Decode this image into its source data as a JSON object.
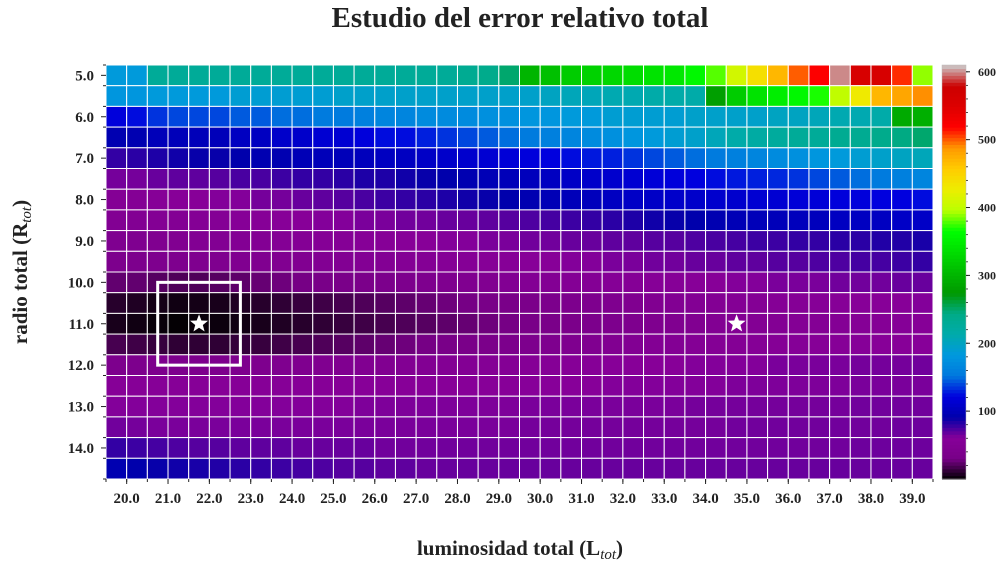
{
  "chart_data": {
    "type": "heatmap",
    "title": "Estudio del error relativo total",
    "xlabel": {
      "main": "luminosidad total (L",
      "sub": "tot",
      "close": ")"
    },
    "ylabel": {
      "main": "radio total (R",
      "sub": "tot",
      "close": ")"
    },
    "x_ticks": [
      "20.0",
      "21.0",
      "22.0",
      "23.0",
      "24.0",
      "25.0",
      "26.0",
      "27.0",
      "28.0",
      "29.0",
      "30.0",
      "31.0",
      "32.0",
      "33.0",
      "34.0",
      "35.0",
      "36.0",
      "37.0",
      "38.0",
      "39.0"
    ],
    "y_ticks": [
      "5.0",
      "6.0",
      "7.0",
      "8.0",
      "9.0",
      "10.0",
      "11.0",
      "12.0",
      "13.0",
      "14.0"
    ],
    "x_range": [
      20.0,
      40.0
    ],
    "y_range": [
      5.0,
      14.5
    ],
    "n_cols": 40,
    "n_rows": 20,
    "colorbar": {
      "colormap": "nipy_spectral",
      "min": 0,
      "max": 610,
      "ticks": [
        "100",
        "200",
        "300",
        "400",
        "500",
        "600"
      ]
    },
    "grid_lines": "white",
    "markers": [
      {
        "type": "star",
        "x": 22.0,
        "y": 11.0
      },
      {
        "type": "star",
        "x": 35.0,
        "y": 11.0
      }
    ],
    "highlight_box": {
      "x_min": 21.0,
      "x_max": 23.0,
      "y_min": 10.0,
      "y_max": 12.0
    },
    "values_note_rows": "row 0 = R 5.0, step 0.5; col 0 = L 20.0, step 0.5",
    "values": [
      [
        185,
        185,
        230,
        230,
        230,
        230,
        230,
        230,
        230,
        230,
        230,
        230,
        230,
        230,
        230,
        230,
        230,
        235,
        240,
        250,
        300,
        310,
        320,
        325,
        330,
        335,
        340,
        345,
        360,
        380,
        410,
        440,
        470,
        500,
        520,
        600,
        560,
        560,
        510,
        390
      ],
      [
        180,
        180,
        185,
        185,
        185,
        185,
        190,
        190,
        190,
        190,
        190,
        195,
        195,
        195,
        195,
        195,
        195,
        195,
        195,
        195,
        195,
        200,
        205,
        205,
        210,
        210,
        215,
        215,
        215,
        280,
        320,
        340,
        350,
        360,
        370,
        400,
        430,
        470,
        480,
        490
      ],
      [
        120,
        125,
        135,
        140,
        140,
        140,
        145,
        145,
        150,
        150,
        155,
        155,
        160,
        165,
        165,
        170,
        170,
        170,
        175,
        175,
        180,
        180,
        185,
        185,
        190,
        190,
        190,
        190,
        195,
        195,
        195,
        195,
        200,
        200,
        205,
        210,
        210,
        215,
        290,
        295
      ],
      [
        95,
        95,
        100,
        100,
        100,
        100,
        105,
        105,
        110,
        110,
        115,
        115,
        120,
        125,
        125,
        130,
        135,
        140,
        145,
        150,
        155,
        160,
        165,
        170,
        175,
        180,
        185,
        190,
        195,
        205,
        215,
        220,
        225,
        230,
        230,
        235,
        235,
        240,
        245,
        250
      ],
      [
        80,
        82,
        85,
        88,
        90,
        90,
        92,
        95,
        95,
        98,
        100,
        100,
        102,
        105,
        105,
        108,
        110,
        112,
        115,
        118,
        120,
        122,
        125,
        128,
        130,
        135,
        140,
        145,
        150,
        155,
        160,
        165,
        170,
        175,
        180,
        185,
        190,
        195,
        200,
        205
      ],
      [
        65,
        65,
        68,
        70,
        70,
        72,
        75,
        75,
        78,
        80,
        80,
        82,
        85,
        85,
        88,
        90,
        92,
        95,
        98,
        100,
        102,
        105,
        108,
        110,
        112,
        115,
        118,
        120,
        122,
        125,
        128,
        130,
        132,
        135,
        140,
        145,
        150,
        155,
        160,
        165
      ],
      [
        55,
        55,
        58,
        60,
        60,
        62,
        62,
        65,
        65,
        68,
        70,
        72,
        75,
        78,
        80,
        82,
        85,
        88,
        90,
        92,
        95,
        98,
        100,
        102,
        105,
        108,
        108,
        110,
        110,
        112,
        112,
        115,
        115,
        118,
        118,
        120,
        120,
        122,
        122,
        125
      ],
      [
        50,
        50,
        52,
        52,
        55,
        55,
        58,
        58,
        60,
        60,
        62,
        62,
        64,
        64,
        66,
        66,
        68,
        68,
        70,
        72,
        74,
        76,
        78,
        80,
        82,
        85,
        88,
        90,
        92,
        95,
        98,
        100,
        100,
        102,
        102,
        105,
        105,
        105,
        108,
        108
      ],
      [
        45,
        45,
        46,
        48,
        50,
        50,
        52,
        52,
        54,
        54,
        56,
        56,
        58,
        58,
        60,
        60,
        62,
        62,
        64,
        64,
        66,
        66,
        68,
        68,
        70,
        70,
        72,
        72,
        74,
        75,
        76,
        78,
        78,
        80,
        80,
        82,
        82,
        84,
        84,
        86
      ],
      [
        40,
        40,
        42,
        42,
        44,
        44,
        46,
        46,
        48,
        48,
        50,
        50,
        52,
        52,
        54,
        54,
        56,
        56,
        58,
        58,
        60,
        60,
        62,
        62,
        64,
        64,
        66,
        66,
        68,
        68,
        70,
        70,
        72,
        72,
        74,
        74,
        76,
        76,
        78,
        80
      ],
      [
        25,
        25,
        22,
        20,
        20,
        22,
        24,
        26,
        28,
        30,
        32,
        34,
        36,
        38,
        40,
        42,
        44,
        46,
        48,
        50,
        52,
        52,
        54,
        54,
        56,
        56,
        58,
        58,
        60,
        60,
        62,
        62,
        64,
        64,
        64,
        66,
        66,
        66,
        68,
        68
      ],
      [
        10,
        8,
        5,
        4,
        5,
        6,
        8,
        10,
        12,
        14,
        16,
        18,
        20,
        22,
        24,
        26,
        28,
        30,
        32,
        34,
        36,
        38,
        40,
        42,
        44,
        46,
        48,
        50,
        52,
        52,
        54,
        54,
        56,
        56,
        58,
        58,
        60,
        60,
        60,
        62
      ],
      [
        6,
        4,
        2,
        1,
        2,
        3,
        4,
        6,
        8,
        10,
        12,
        14,
        16,
        18,
        20,
        22,
        24,
        26,
        28,
        30,
        32,
        34,
        36,
        38,
        40,
        42,
        44,
        46,
        48,
        50,
        50,
        52,
        52,
        54,
        54,
        55,
        56,
        56,
        57,
        58
      ],
      [
        18,
        16,
        14,
        12,
        12,
        12,
        13,
        14,
        16,
        18,
        20,
        22,
        24,
        26,
        28,
        30,
        32,
        34,
        36,
        38,
        40,
        42,
        44,
        46,
        48,
        50,
        52,
        52,
        54,
        54,
        55,
        56,
        56,
        57,
        58,
        58,
        59,
        60,
        60,
        61
      ],
      [
        40,
        40,
        40,
        40,
        40,
        40,
        42,
        42,
        44,
        44,
        46,
        46,
        48,
        48,
        50,
        50,
        52,
        52,
        54,
        54,
        56,
        56,
        58,
        58,
        60,
        60,
        60,
        60,
        62,
        62,
        62,
        62,
        64,
        64,
        64,
        64,
        65,
        65,
        65,
        66
      ],
      [
        58,
        58,
        58,
        58,
        58,
        58,
        58,
        58,
        58,
        58,
        58,
        58,
        60,
        60,
        60,
        60,
        60,
        60,
        60,
        60,
        61,
        61,
        61,
        61,
        62,
        62,
        62,
        62,
        62,
        62,
        63,
        63,
        63,
        63,
        63,
        63,
        64,
        64,
        64,
        64
      ],
      [
        62,
        62,
        62,
        62,
        62,
        62,
        62,
        62,
        62,
        62,
        62,
        62,
        63,
        63,
        63,
        63,
        63,
        63,
        63,
        63,
        64,
        64,
        64,
        64,
        64,
        64,
        64,
        64,
        65,
        65,
        65,
        65,
        65,
        65,
        65,
        65,
        66,
        66,
        66,
        66
      ],
      [
        66,
        65,
        64,
        64,
        64,
        64,
        64,
        64,
        64,
        64,
        64,
        64,
        64,
        64,
        64,
        64,
        64,
        64,
        64,
        64,
        65,
        65,
        65,
        65,
        65,
        65,
        65,
        65,
        65,
        65,
        66,
        66,
        66,
        66,
        66,
        66,
        66,
        66,
        67,
        67
      ],
      [
        80,
        78,
        76,
        74,
        72,
        72,
        70,
        70,
        70,
        68,
        68,
        68,
        68,
        66,
        66,
        66,
        66,
        66,
        66,
        66,
        66,
        66,
        66,
        66,
        66,
        66,
        66,
        66,
        66,
        66,
        66,
        66,
        66,
        66,
        66,
        66,
        67,
        67,
        67,
        67
      ],
      [
        95,
        92,
        90,
        88,
        86,
        84,
        82,
        80,
        78,
        76,
        74,
        72,
        72,
        70,
        70,
        68,
        68,
        68,
        68,
        68,
        68,
        68,
        68,
        68,
        68,
        68,
        68,
        68,
        68,
        68,
        68,
        68,
        68,
        68,
        68,
        68,
        68,
        68,
        68,
        68
      ]
    ]
  }
}
